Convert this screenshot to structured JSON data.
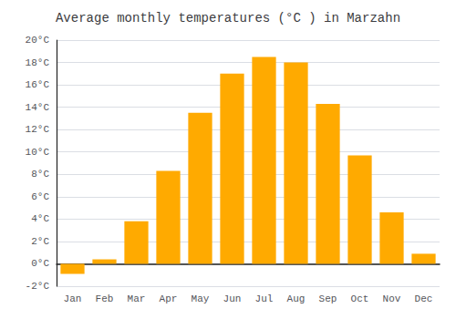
{
  "chart_data": {
    "type": "bar",
    "title": "Average monthly temperatures (°C ) in Marzahn",
    "categories": [
      "Jan",
      "Feb",
      "Mar",
      "Apr",
      "May",
      "Jun",
      "Jul",
      "Aug",
      "Sep",
      "Oct",
      "Nov",
      "Dec"
    ],
    "values": [
      -0.9,
      0.4,
      3.8,
      8.3,
      13.5,
      17.0,
      18.5,
      18.0,
      14.3,
      9.7,
      4.6,
      0.9
    ],
    "color": "#FFAA00",
    "ylim": [
      -2,
      20
    ],
    "yticks": [
      {
        "value": -2,
        "label": "-2°C"
      },
      {
        "value": 0,
        "label": "0°C"
      },
      {
        "value": 2,
        "label": "2°C"
      },
      {
        "value": 4,
        "label": "4°C"
      },
      {
        "value": 6,
        "label": "6°C"
      },
      {
        "value": 8,
        "label": "8°C"
      },
      {
        "value": 10,
        "label": "10°C"
      },
      {
        "value": 12,
        "label": "12°C"
      },
      {
        "value": 14,
        "label": "14°C"
      },
      {
        "value": 16,
        "label": "16°C"
      },
      {
        "value": 18,
        "label": "18°C"
      },
      {
        "value": 20,
        "label": "20°C"
      }
    ],
    "grid": true
  }
}
